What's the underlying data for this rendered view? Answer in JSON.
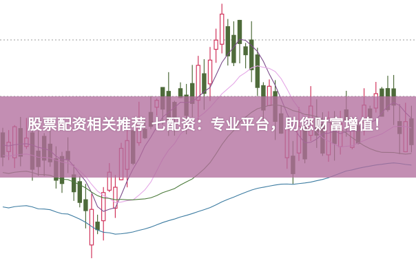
{
  "headline": "股票配资相关推荐 七配资：专业平台，助您财富增值！",
  "colors": {
    "up": "#d0325a",
    "down": "#4e6b3a",
    "band": "#b26e9e",
    "ma_short": "#7a4a8a",
    "ma_mid": "#4a7a3a",
    "ma_long": "#3a7aa0",
    "ma_pink": "#e4a6e6"
  }
}
